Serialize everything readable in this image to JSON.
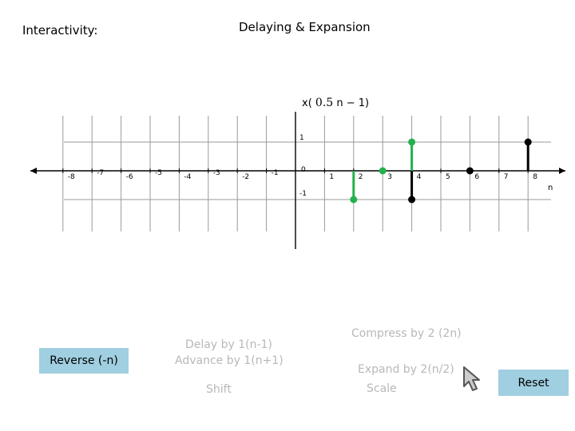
{
  "header": {
    "interactivity_label": "Interactivity:",
    "title": "Delaying & Expansion"
  },
  "formula": {
    "prefix": "x(",
    "coefficient": "0.5",
    "variable": "n",
    "operator": "−",
    "offset": "1",
    "suffix": ")"
  },
  "axis": {
    "x_label": "n",
    "x_ticks": [
      "-8",
      "-7",
      "-6",
      "-5",
      "-4",
      "-3",
      "-2",
      "-1",
      "0",
      "1",
      "2",
      "3",
      "4",
      "5",
      "6",
      "7",
      "8"
    ],
    "y_ticks": [
      "1",
      "0",
      "-1"
    ]
  },
  "chart_data": {
    "type": "scatter",
    "x_range": [
      -9,
      9
    ],
    "y_range": [
      -1,
      1
    ],
    "series": [
      {
        "color": "#000000",
        "points": [
          [
            4,
            -1
          ],
          [
            6,
            0
          ],
          [
            8,
            1
          ]
        ]
      },
      {
        "color": "#22b14c",
        "points": [
          [
            2,
            -1
          ],
          [
            3,
            0
          ],
          [
            4,
            1
          ]
        ]
      }
    ]
  },
  "controls": {
    "reverse_label": "Reverse (-n)",
    "delay_label": "Delay by 1(n-1)",
    "advance_label": "Advance by 1(n+1)",
    "shift_label": "Shift",
    "compress_label": "Compress by 2 (2n)",
    "expand_label": "Expand by 2(n/2)",
    "scale_label": "Scale",
    "reset_label": "Reset"
  },
  "colors": {
    "button_bg": "#9fcfe0",
    "disabled_text": "#b8b8b8",
    "green_series": "#22b14c",
    "black_series": "#000000"
  }
}
